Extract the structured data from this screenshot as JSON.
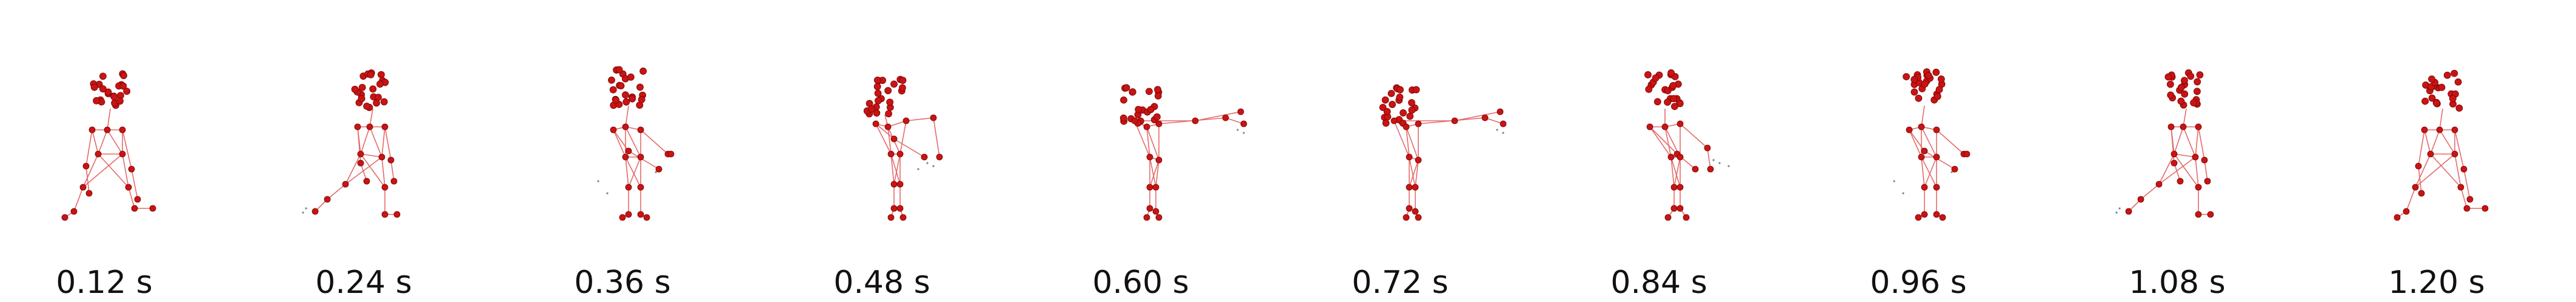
{
  "colors": {
    "joint": "#c81414",
    "joint_edge": "#7a0000",
    "limb": "#e46a6a",
    "noise": "#6f8a8a"
  },
  "frames": [
    {
      "label": "0.12 s",
      "pose": "walk-forward-step"
    },
    {
      "label": "0.24 s",
      "pose": "walk-back-step"
    },
    {
      "label": "0.36 s",
      "pose": "arm-raise"
    },
    {
      "label": "0.48 s",
      "pose": "arms-forward"
    },
    {
      "label": "0.60 s",
      "pose": "arm-extended-side"
    },
    {
      "label": "0.72 s",
      "pose": "arm-extended-side"
    },
    {
      "label": "0.84 s",
      "pose": "arm-lowering"
    },
    {
      "label": "0.96 s",
      "pose": "arm-raise"
    },
    {
      "label": "1.08 s",
      "pose": "walk-back-step"
    },
    {
      "label": "1.20 s",
      "pose": "walk-forward-step"
    }
  ]
}
